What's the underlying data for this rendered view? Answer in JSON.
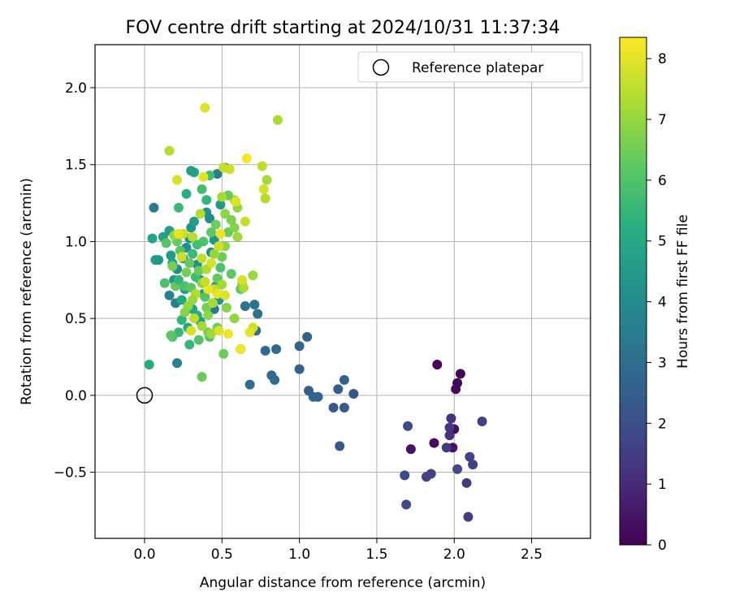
{
  "chart_data": {
    "type": "scatter",
    "title": "FOV centre drift starting at 2024/10/31 11:37:34",
    "xlabel": "Angular distance from reference (arcmin)",
    "ylabel": "Rotation from reference (arcmin)",
    "xlim": [
      -0.32,
      2.88
    ],
    "ylim": [
      -0.93,
      2.28
    ],
    "xticks": [
      0.0,
      0.5,
      1.0,
      1.5,
      2.0,
      2.5
    ],
    "xtick_labels": [
      "0.0",
      "0.5",
      "1.0",
      "1.5",
      "2.0",
      "2.5"
    ],
    "yticks": [
      -0.5,
      0.0,
      0.5,
      1.0,
      1.5,
      2.0
    ],
    "ytick_labels": [
      "−0.5",
      "0.0",
      "0.5",
      "1.0",
      "1.5",
      "2.0"
    ],
    "grid": true,
    "legend": {
      "position": "upper-right",
      "entries": [
        "Reference platepar"
      ]
    },
    "reference_point": {
      "x": 0.0,
      "y": 0.0,
      "label": "Reference platepar"
    },
    "colorbar": {
      "label": "Hours from first FF file",
      "colormap": "viridis",
      "range": [
        0,
        8.35
      ],
      "ticks": [
        0,
        1,
        2,
        3,
        4,
        5,
        6,
        7,
        8
      ],
      "tick_labels": [
        "0",
        "1",
        "2",
        "3",
        "4",
        "5",
        "6",
        "7",
        "8"
      ]
    },
    "points": [
      {
        "x": 1.89,
        "y": 0.2,
        "h": 0.1
      },
      {
        "x": 2.04,
        "y": 0.14,
        "h": 0.1
      },
      {
        "x": 2.02,
        "y": 0.08,
        "h": 0.1
      },
      {
        "x": 2.01,
        "y": 0.04,
        "h": 0.2
      },
      {
        "x": 2.0,
        "y": -0.22,
        "h": 0.3
      },
      {
        "x": 1.87,
        "y": -0.31,
        "h": 0.2
      },
      {
        "x": 1.72,
        "y": -0.35,
        "h": 0.4
      },
      {
        "x": 1.99,
        "y": -0.34,
        "h": 0.4
      },
      {
        "x": 1.98,
        "y": -0.15,
        "h": 1.2
      },
      {
        "x": 1.97,
        "y": -0.21,
        "h": 1.3
      },
      {
        "x": 1.97,
        "y": -0.26,
        "h": 1.2
      },
      {
        "x": 2.18,
        "y": -0.17,
        "h": 1.6
      },
      {
        "x": 1.7,
        "y": -0.2,
        "h": 1.8
      },
      {
        "x": 1.95,
        "y": -0.34,
        "h": 1.4
      },
      {
        "x": 2.1,
        "y": -0.4,
        "h": 1.7
      },
      {
        "x": 2.12,
        "y": -0.45,
        "h": 1.6
      },
      {
        "x": 2.02,
        "y": -0.48,
        "h": 1.8
      },
      {
        "x": 1.85,
        "y": -0.51,
        "h": 1.6
      },
      {
        "x": 1.82,
        "y": -0.53,
        "h": 1.7
      },
      {
        "x": 1.68,
        "y": -0.52,
        "h": 1.9
      },
      {
        "x": 2.08,
        "y": -0.57,
        "h": 1.4
      },
      {
        "x": 1.69,
        "y": -0.71,
        "h": 1.8
      },
      {
        "x": 2.09,
        "y": -0.79,
        "h": 1.5
      },
      {
        "x": 1.26,
        "y": -0.33,
        "h": 2.3
      },
      {
        "x": 1.22,
        "y": -0.08,
        "h": 2.3
      },
      {
        "x": 1.29,
        "y": -0.08,
        "h": 2.4
      },
      {
        "x": 1.35,
        "y": 0.01,
        "h": 2.2
      },
      {
        "x": 1.25,
        "y": 0.04,
        "h": 2.4
      },
      {
        "x": 1.29,
        "y": 0.1,
        "h": 2.5
      },
      {
        "x": 1.12,
        "y": -0.01,
        "h": 2.6
      },
      {
        "x": 1.09,
        "y": -0.01,
        "h": 2.7
      },
      {
        "x": 1.06,
        "y": 0.03,
        "h": 2.5
      },
      {
        "x": 1.0,
        "y": 0.17,
        "h": 2.6
      },
      {
        "x": 0.82,
        "y": 0.13,
        "h": 2.8
      },
      {
        "x": 0.84,
        "y": 0.1,
        "h": 2.9
      },
      {
        "x": 0.68,
        "y": 0.07,
        "h": 3.0
      },
      {
        "x": 1.0,
        "y": 0.32,
        "h": 2.7
      },
      {
        "x": 1.05,
        "y": 0.38,
        "h": 2.6
      },
      {
        "x": 0.85,
        "y": 0.3,
        "h": 2.9
      },
      {
        "x": 0.78,
        "y": 0.29,
        "h": 2.9
      },
      {
        "x": 0.62,
        "y": 0.3,
        "h": 3.0
      },
      {
        "x": 0.72,
        "y": 0.42,
        "h": 3.0
      },
      {
        "x": 0.73,
        "y": 0.53,
        "h": 3.1
      },
      {
        "x": 0.71,
        "y": 0.59,
        "h": 3.2
      },
      {
        "x": 0.65,
        "y": 0.58,
        "h": 3.2
      },
      {
        "x": 0.45,
        "y": 0.56,
        "h": 3.4
      },
      {
        "x": 0.21,
        "y": 0.21,
        "h": 3.6
      },
      {
        "x": 0.06,
        "y": 1.22,
        "h": 3.4
      },
      {
        "x": 0.16,
        "y": 0.65,
        "h": 3.6
      },
      {
        "x": 0.2,
        "y": 0.6,
        "h": 3.7
      },
      {
        "x": 0.52,
        "y": 1.48,
        "h": 3.4
      },
      {
        "x": 0.47,
        "y": 1.44,
        "h": 3.6
      },
      {
        "x": 0.32,
        "y": 1.45,
        "h": 4.9
      },
      {
        "x": 0.3,
        "y": 1.46,
        "h": 4.6
      },
      {
        "x": 0.42,
        "y": 1.43,
        "h": 5.8
      },
      {
        "x": 0.27,
        "y": 1.31,
        "h": 5.2
      },
      {
        "x": 0.37,
        "y": 1.34,
        "h": 5.8
      },
      {
        "x": 0.22,
        "y": 1.22,
        "h": 5.6
      },
      {
        "x": 0.4,
        "y": 1.27,
        "h": 5.4
      },
      {
        "x": 0.49,
        "y": 1.24,
        "h": 4.5
      },
      {
        "x": 0.03,
        "y": 0.2,
        "h": 5.1
      },
      {
        "x": 0.05,
        "y": 1.02,
        "h": 4.9
      },
      {
        "x": 0.07,
        "y": 0.88,
        "h": 4.7
      },
      {
        "x": 0.09,
        "y": 0.88,
        "h": 4.4
      },
      {
        "x": 0.12,
        "y": 1.03,
        "h": 4.8
      },
      {
        "x": 0.16,
        "y": 1.07,
        "h": 4.6
      },
      {
        "x": 0.17,
        "y": 0.91,
        "h": 4.5
      },
      {
        "x": 0.18,
        "y": 0.86,
        "h": 4.8
      },
      {
        "x": 0.19,
        "y": 0.75,
        "h": 4.3
      },
      {
        "x": 0.21,
        "y": 0.82,
        "h": 4.1
      },
      {
        "x": 0.25,
        "y": 0.89,
        "h": 4.2
      },
      {
        "x": 0.27,
        "y": 0.96,
        "h": 4.0
      },
      {
        "x": 0.29,
        "y": 1.02,
        "h": 4.4
      },
      {
        "x": 0.3,
        "y": 1.09,
        "h": 4.3
      },
      {
        "x": 0.32,
        "y": 1.13,
        "h": 4.6
      },
      {
        "x": 0.34,
        "y": 0.85,
        "h": 4.0
      },
      {
        "x": 0.36,
        "y": 0.75,
        "h": 4.2
      },
      {
        "x": 0.38,
        "y": 0.66,
        "h": 4.4
      },
      {
        "x": 0.4,
        "y": 1.19,
        "h": 4.2
      },
      {
        "x": 0.42,
        "y": 1.15,
        "h": 4.0
      },
      {
        "x": 0.43,
        "y": 0.93,
        "h": 4.1
      },
      {
        "x": 0.45,
        "y": 1.01,
        "h": 4.3
      },
      {
        "x": 0.46,
        "y": 0.71,
        "h": 4.5
      },
      {
        "x": 0.48,
        "y": 0.62,
        "h": 4.2
      },
      {
        "x": 0.26,
        "y": 0.69,
        "h": 4.6
      },
      {
        "x": 0.24,
        "y": 0.62,
        "h": 5.0
      },
      {
        "x": 0.31,
        "y": 0.56,
        "h": 4.9
      },
      {
        "x": 0.34,
        "y": 0.52,
        "h": 5.2
      },
      {
        "x": 0.36,
        "y": 0.48,
        "h": 4.8
      },
      {
        "x": 0.28,
        "y": 0.44,
        "h": 5.0
      },
      {
        "x": 0.24,
        "y": 0.49,
        "h": 5.4
      },
      {
        "x": 0.22,
        "y": 0.41,
        "h": 5.6
      },
      {
        "x": 0.18,
        "y": 0.38,
        "h": 5.8
      },
      {
        "x": 0.29,
        "y": 0.33,
        "h": 5.5
      },
      {
        "x": 0.17,
        "y": 0.39,
        "h": 6.2
      },
      {
        "x": 0.35,
        "y": 0.36,
        "h": 6.1
      },
      {
        "x": 0.42,
        "y": 0.38,
        "h": 6.0
      },
      {
        "x": 0.37,
        "y": 0.12,
        "h": 6.4
      },
      {
        "x": 0.51,
        "y": 0.27,
        "h": 6.5
      },
      {
        "x": 0.41,
        "y": 0.41,
        "h": 6.6
      },
      {
        "x": 0.47,
        "y": 0.44,
        "h": 6.5
      },
      {
        "x": 0.53,
        "y": 0.57,
        "h": 6.8
      },
      {
        "x": 0.58,
        "y": 0.5,
        "h": 7.0
      },
      {
        "x": 0.62,
        "y": 0.69,
        "h": 6.3
      },
      {
        "x": 0.56,
        "y": 0.79,
        "h": 6.2
      },
      {
        "x": 0.63,
        "y": 0.72,
        "h": 6.7
      },
      {
        "x": 0.7,
        "y": 0.78,
        "h": 7.1
      },
      {
        "x": 0.64,
        "y": 0.7,
        "h": 7.3
      },
      {
        "x": 0.13,
        "y": 0.73,
        "h": 5.9
      },
      {
        "x": 0.14,
        "y": 0.99,
        "h": 6.1
      },
      {
        "x": 0.18,
        "y": 0.84,
        "h": 6.6
      },
      {
        "x": 0.2,
        "y": 0.71,
        "h": 6.3
      },
      {
        "x": 0.22,
        "y": 0.75,
        "h": 5.5
      },
      {
        "x": 0.26,
        "y": 0.71,
        "h": 6.0
      },
      {
        "x": 0.3,
        "y": 0.7,
        "h": 6.2
      },
      {
        "x": 0.33,
        "y": 0.77,
        "h": 5.7
      },
      {
        "x": 0.35,
        "y": 0.81,
        "h": 6.4
      },
      {
        "x": 0.37,
        "y": 0.73,
        "h": 6.8
      },
      {
        "x": 0.39,
        "y": 0.64,
        "h": 6.1
      },
      {
        "x": 0.4,
        "y": 0.57,
        "h": 6.6
      },
      {
        "x": 0.41,
        "y": 0.52,
        "h": 6.9
      },
      {
        "x": 0.44,
        "y": 0.6,
        "h": 7.2
      },
      {
        "x": 0.45,
        "y": 0.69,
        "h": 7.6
      },
      {
        "x": 0.47,
        "y": 0.76,
        "h": 6.3
      },
      {
        "x": 0.49,
        "y": 0.83,
        "h": 6.0
      },
      {
        "x": 0.5,
        "y": 0.9,
        "h": 6.5
      },
      {
        "x": 0.52,
        "y": 0.97,
        "h": 6.9
      },
      {
        "x": 0.54,
        "y": 1.06,
        "h": 6.4
      },
      {
        "x": 0.56,
        "y": 1.14,
        "h": 6.7
      },
      {
        "x": 0.58,
        "y": 1.09,
        "h": 6.8
      },
      {
        "x": 0.6,
        "y": 1.03,
        "h": 7.1
      },
      {
        "x": 0.58,
        "y": 1.27,
        "h": 7.3
      },
      {
        "x": 0.6,
        "y": 1.22,
        "h": 7.0
      },
      {
        "x": 0.54,
        "y": 1.3,
        "h": 6.4
      },
      {
        "x": 0.5,
        "y": 1.29,
        "h": 7.2
      },
      {
        "x": 0.52,
        "y": 1.18,
        "h": 6.9
      },
      {
        "x": 0.46,
        "y": 1.11,
        "h": 6.5
      },
      {
        "x": 0.43,
        "y": 1.06,
        "h": 6.2
      },
      {
        "x": 0.36,
        "y": 1.18,
        "h": 7.4
      },
      {
        "x": 0.38,
        "y": 1.0,
        "h": 6.0
      },
      {
        "x": 0.34,
        "y": 0.98,
        "h": 5.8
      },
      {
        "x": 0.31,
        "y": 0.92,
        "h": 5.6
      },
      {
        "x": 0.29,
        "y": 0.86,
        "h": 6.3
      },
      {
        "x": 0.27,
        "y": 0.8,
        "h": 6.6
      },
      {
        "x": 0.23,
        "y": 0.94,
        "h": 6.1
      },
      {
        "x": 0.21,
        "y": 1.0,
        "h": 6.4
      },
      {
        "x": 0.19,
        "y": 1.04,
        "h": 7.0
      },
      {
        "x": 0.25,
        "y": 1.05,
        "h": 7.6
      },
      {
        "x": 0.31,
        "y": 1.03,
        "h": 7.4
      },
      {
        "x": 0.37,
        "y": 0.89,
        "h": 7.5
      },
      {
        "x": 0.4,
        "y": 0.82,
        "h": 7.3
      },
      {
        "x": 0.43,
        "y": 0.86,
        "h": 7.8
      },
      {
        "x": 0.45,
        "y": 0.92,
        "h": 7.0
      },
      {
        "x": 0.48,
        "y": 0.97,
        "h": 7.7
      },
      {
        "x": 0.5,
        "y": 0.72,
        "h": 7.2
      },
      {
        "x": 0.52,
        "y": 0.65,
        "h": 7.9
      },
      {
        "x": 0.47,
        "y": 0.66,
        "h": 8.0
      },
      {
        "x": 0.41,
        "y": 0.69,
        "h": 8.1
      },
      {
        "x": 0.39,
        "y": 0.74,
        "h": 7.6
      },
      {
        "x": 0.33,
        "y": 0.66,
        "h": 7.4
      },
      {
        "x": 0.31,
        "y": 0.62,
        "h": 7.1
      },
      {
        "x": 0.28,
        "y": 0.58,
        "h": 7.0
      },
      {
        "x": 0.26,
        "y": 0.54,
        "h": 6.8
      },
      {
        "x": 0.32,
        "y": 0.5,
        "h": 7.5
      },
      {
        "x": 0.37,
        "y": 0.45,
        "h": 7.2
      },
      {
        "x": 0.43,
        "y": 0.4,
        "h": 7.1
      },
      {
        "x": 0.3,
        "y": 0.42,
        "h": 7.8
      },
      {
        "x": 0.48,
        "y": 0.42,
        "h": 7.9
      },
      {
        "x": 0.54,
        "y": 0.4,
        "h": 8.1
      },
      {
        "x": 0.62,
        "y": 0.3,
        "h": 8.2
      },
      {
        "x": 0.63,
        "y": 0.75,
        "h": 7.8
      },
      {
        "x": 0.7,
        "y": 0.44,
        "h": 7.7
      },
      {
        "x": 0.68,
        "y": 0.41,
        "h": 8.0
      },
      {
        "x": 0.16,
        "y": 1.59,
        "h": 7.4
      },
      {
        "x": 0.21,
        "y": 1.4,
        "h": 7.8
      },
      {
        "x": 0.39,
        "y": 1.87,
        "h": 7.9
      },
      {
        "x": 0.86,
        "y": 1.79,
        "h": 7.3
      },
      {
        "x": 0.66,
        "y": 1.54,
        "h": 8.2
      },
      {
        "x": 0.55,
        "y": 1.47,
        "h": 7.7
      },
      {
        "x": 0.51,
        "y": 1.48,
        "h": 7.6
      },
      {
        "x": 0.38,
        "y": 1.42,
        "h": 8.0
      },
      {
        "x": 0.76,
        "y": 1.49,
        "h": 7.5
      },
      {
        "x": 0.77,
        "y": 1.34,
        "h": 7.8
      },
      {
        "x": 0.79,
        "y": 1.4,
        "h": 7.2
      },
      {
        "x": 0.78,
        "y": 1.28,
        "h": 7.4
      },
      {
        "x": 0.59,
        "y": 1.26,
        "h": 7.9
      },
      {
        "x": 0.65,
        "y": 1.13,
        "h": 7.6
      },
      {
        "x": 0.22,
        "y": 1.05,
        "h": 8.0
      },
      {
        "x": 0.24,
        "y": 0.9,
        "h": 7.7
      },
      {
        "x": 0.49,
        "y": 1.05,
        "h": 8.1
      }
    ]
  }
}
